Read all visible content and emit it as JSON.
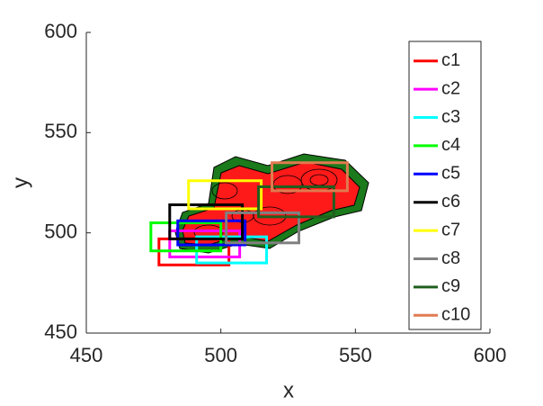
{
  "chart_data": {
    "type": "rectangle",
    "xlabel": "x",
    "ylabel": "y",
    "xlim": [
      450,
      600
    ],
    "ylim": [
      450,
      600
    ],
    "xticks": [
      450,
      500,
      550,
      600
    ],
    "yticks": [
      450,
      500,
      550,
      600
    ],
    "legend": "east",
    "series": [
      {
        "name": "c1",
        "color": "#ff0000",
        "x": [
          477,
          503
        ],
        "y": [
          484,
          497
        ]
      },
      {
        "name": "c2",
        "color": "#ff00ff",
        "x": [
          481,
          507
        ],
        "y": [
          488,
          501
        ]
      },
      {
        "name": "c3",
        "color": "#00ffff",
        "x": [
          491,
          517
        ],
        "y": [
          485,
          498
        ]
      },
      {
        "name": "c4",
        "color": "#00ff00",
        "x": [
          474,
          500
        ],
        "y": [
          491,
          505
        ]
      },
      {
        "name": "c5",
        "color": "#0000ff",
        "x": [
          484,
          509
        ],
        "y": [
          494,
          506
        ]
      },
      {
        "name": "c6",
        "color": "#000000",
        "x": [
          481,
          508
        ],
        "y": [
          497,
          514
        ]
      },
      {
        "name": "c7",
        "color": "#ffff00",
        "x": [
          488,
          515
        ],
        "y": [
          512,
          526
        ]
      },
      {
        "name": "c8",
        "color": "#808080",
        "x": [
          502,
          529
        ],
        "y": [
          495,
          510
        ]
      },
      {
        "name": "c9",
        "color": "#1f5f1f",
        "x": [
          514,
          542
        ],
        "y": [
          508,
          523
        ]
      },
      {
        "name": "c10",
        "color": "#e07b50",
        "x": [
          519,
          547
        ],
        "y": [
          521,
          535
        ]
      }
    ]
  }
}
